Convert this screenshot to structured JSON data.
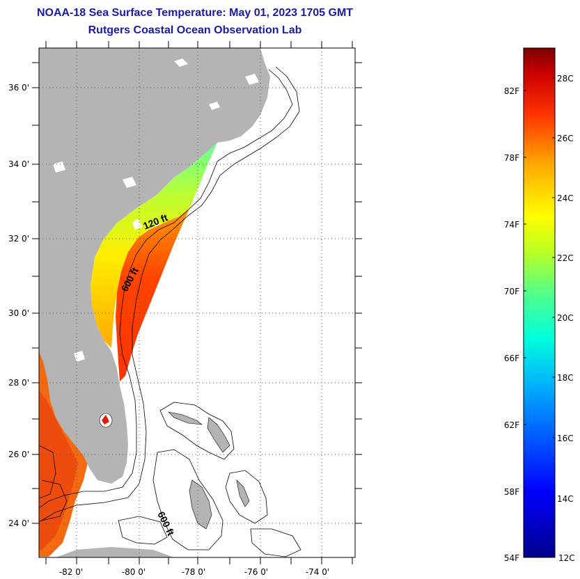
{
  "title_line1": "NOAA-18 Sea Surface Temperature:  May 01, 2023 1705 GMT",
  "title_line2": "Rutgers Coastal Ocean Observation Lab",
  "lat_labels": [
    "36 0'",
    "34 0'",
    "32 0'",
    "30 0'",
    "28 0'",
    "26 0'",
    "24 0'"
  ],
  "lon_labels": [
    "-82 0'",
    "-80 0'",
    "-78 0'",
    "-76 0'",
    "-74 0'"
  ],
  "contour_labels": [
    "120 ft",
    "600 ft",
    "600 ft"
  ],
  "colorbar": {
    "fahrenheit_labels": [
      "82F",
      "78F",
      "74F",
      "70F",
      "66F",
      "62F",
      "58F",
      "54F"
    ],
    "celsius_labels": [
      "28C",
      "26C",
      "24C",
      "22C",
      "20C",
      "18C",
      "16C",
      "14C",
      "12C"
    ]
  },
  "colors": {
    "title": "#1a1aa6",
    "land": "#b4b4b4"
  }
}
